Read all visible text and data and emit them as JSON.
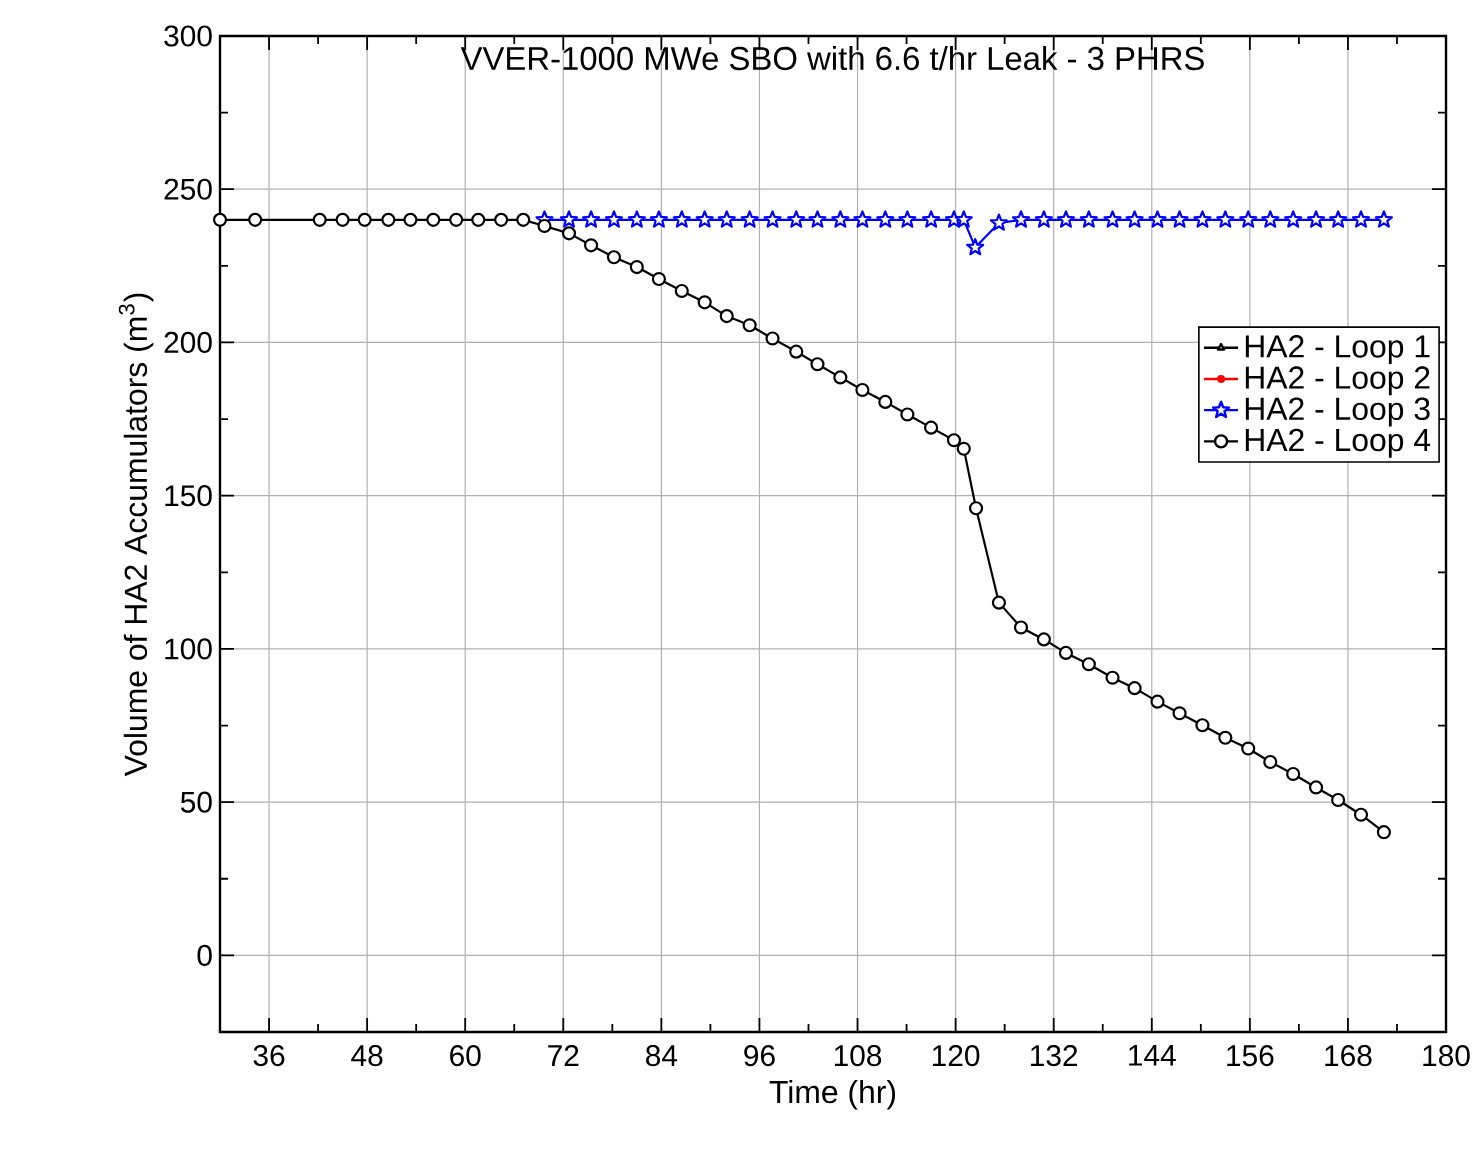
{
  "chart_data": {
    "type": "line",
    "title": "VVER-1000 MWe SBO with 6.6 t/hr Leak - 3 PHRS",
    "xlabel": "Time (hr)",
    "ylabel": "Volume of HA2 Accumulators (m$^{3}$)",
    "xlim": [
      30,
      180
    ],
    "ylim": [
      -25,
      300
    ],
    "xticks": [
      36,
      48,
      60,
      72,
      84,
      96,
      108,
      120,
      132,
      144,
      156,
      168,
      180
    ],
    "yticks": [
      0,
      50,
      100,
      150,
      200,
      250,
      300
    ],
    "grid": true,
    "legend": "right",
    "line_style": "solid",
    "series": [
      {
        "name": "HA2 - Loop 1",
        "color": "#000000",
        "marker": "triangle"
      },
      {
        "name": "HA2 - Loop 2",
        "color": "#ff0000",
        "marker": "circle"
      },
      {
        "name": "HA2 - Loop 3",
        "color": "#0000ff",
        "marker": "star",
        "x": [
          69.7,
          72.7,
          75.4,
          78.2,
          81.0,
          83.7,
          86.5,
          89.3,
          92.0,
          94.8,
          97.6,
          100.5,
          103.1,
          105.9,
          108.6,
          111.4,
          114.1,
          117.0,
          119.8,
          121.0,
          122.4,
          125.3,
          128.0,
          130.8,
          133.5,
          136.3,
          139.2,
          141.9,
          144.7,
          147.4,
          150.2,
          153.0,
          155.8,
          158.5,
          161.3,
          164.1,
          166.8,
          169.6,
          172.4
        ],
        "values": [
          240,
          240,
          240,
          240,
          240,
          240,
          240,
          240,
          240,
          240,
          240,
          240,
          240,
          240,
          240,
          240,
          240,
          240,
          240,
          240,
          231,
          239,
          240,
          240,
          240,
          240,
          240,
          240,
          240,
          240,
          240,
          240,
          240,
          240,
          240,
          240,
          240,
          240,
          240
        ]
      },
      {
        "name": "HA2 - Loop 4",
        "color": "#000000",
        "marker": "circle_open",
        "x": [
          30,
          34.3,
          42.2,
          45.0,
          47.7,
          50.6,
          53.3,
          56.1,
          58.9,
          61.6,
          64.4,
          67.1,
          69.7,
          72.7,
          75.4,
          78.2,
          81.0,
          83.7,
          86.5,
          89.3,
          92.0,
          94.8,
          97.6,
          100.5,
          103.1,
          105.9,
          108.6,
          111.4,
          114.1,
          117.0,
          119.8,
          121.0,
          122.5,
          125.3,
          128.0,
          130.8,
          133.5,
          136.3,
          139.2,
          141.9,
          144.7,
          147.4,
          150.2,
          153.0,
          155.8,
          158.5,
          161.3,
          164.1,
          166.8,
          169.6,
          172.4
        ],
        "values": [
          240,
          240,
          240,
          240,
          240,
          240,
          240,
          240,
          240,
          240,
          240,
          240,
          238,
          235.6,
          231.7,
          227.8,
          224.6,
          220.7,
          216.8,
          213.1,
          208.6,
          205.6,
          201.3,
          197,
          192.9,
          188.6,
          184.5,
          180.6,
          176.5,
          172.2,
          168.1,
          165.3,
          145.9,
          115.1,
          107,
          103.1,
          98.7,
          95,
          90.6,
          87.2,
          82.8,
          79,
          75.1,
          71,
          67.5,
          63.1,
          59.2,
          54.8,
          50.7,
          45.9,
          40.2
        ]
      }
    ]
  }
}
